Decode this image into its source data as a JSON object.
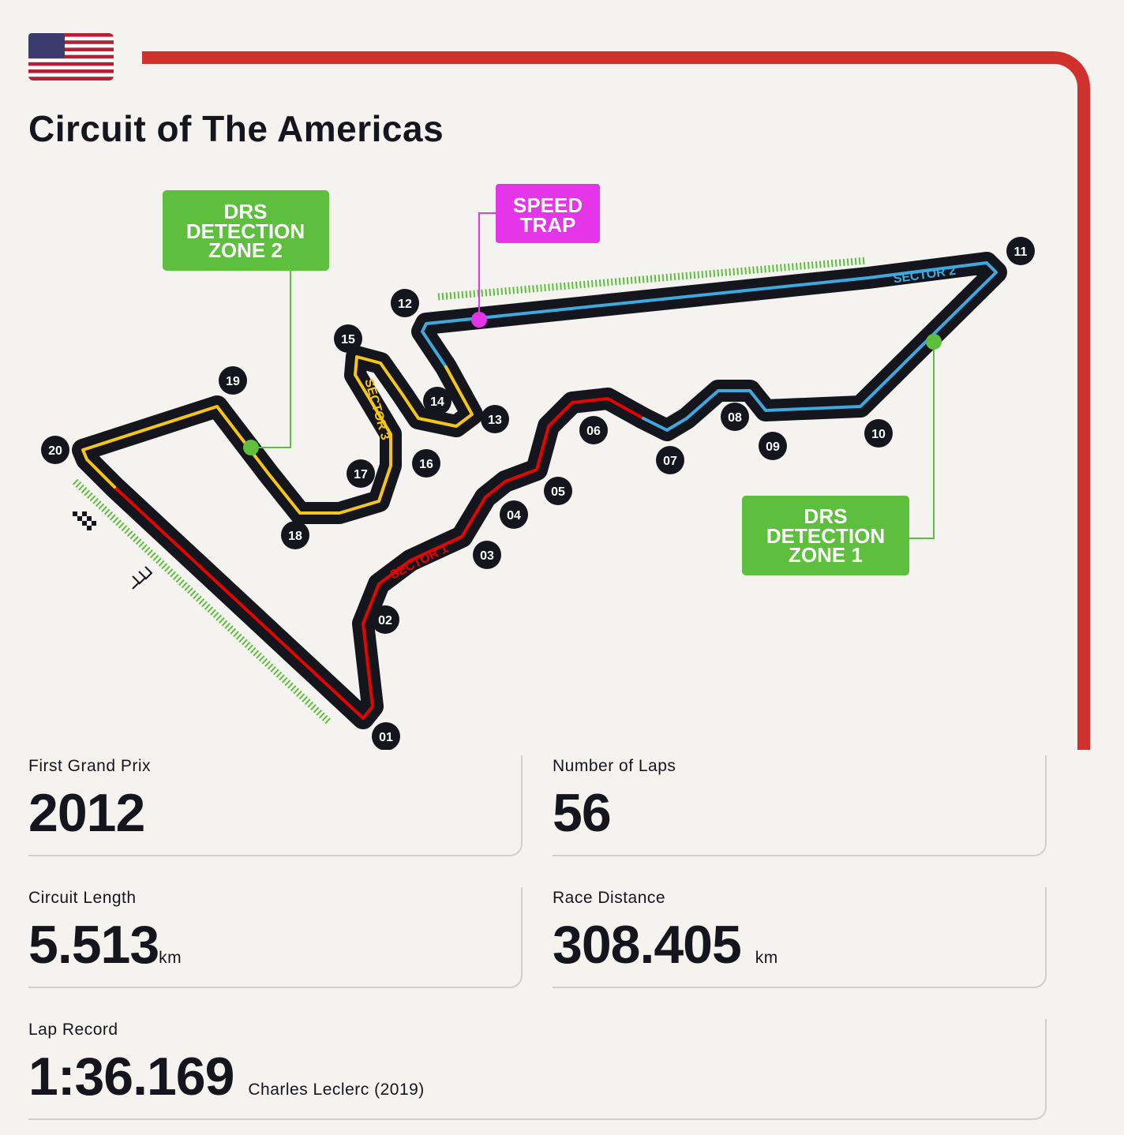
{
  "header": {
    "title": "Circuit of The Americas"
  },
  "map": {
    "callouts": {
      "drs_zone_2": [
        "DRS",
        "DETECTION",
        "ZONE 2"
      ],
      "speed_trap": [
        "SPEED",
        "TRAP"
      ],
      "drs_zone_1": [
        "DRS",
        "DETECTION",
        "ZONE 1"
      ]
    },
    "sectors": [
      "SECTOR 1",
      "SECTOR 2",
      "SECTOR 3"
    ],
    "turns": [
      "01",
      "02",
      "03",
      "04",
      "05",
      "06",
      "07",
      "08",
      "09",
      "10",
      "11",
      "12",
      "13",
      "14",
      "15",
      "16",
      "17",
      "18",
      "19",
      "20"
    ]
  },
  "stats": {
    "first_grand_prix": {
      "label": "First Grand Prix",
      "value": "2012"
    },
    "number_of_laps": {
      "label": "Number of Laps",
      "value": "56"
    },
    "circuit_length": {
      "label": "Circuit Length",
      "value": "5.513",
      "unit": "km"
    },
    "race_distance": {
      "label": "Race Distance",
      "value": "308.405",
      "unit": "km"
    },
    "lap_record": {
      "label": "Lap Record",
      "value": "1:36.169",
      "holder": "Charles Leclerc (2019)"
    }
  }
}
